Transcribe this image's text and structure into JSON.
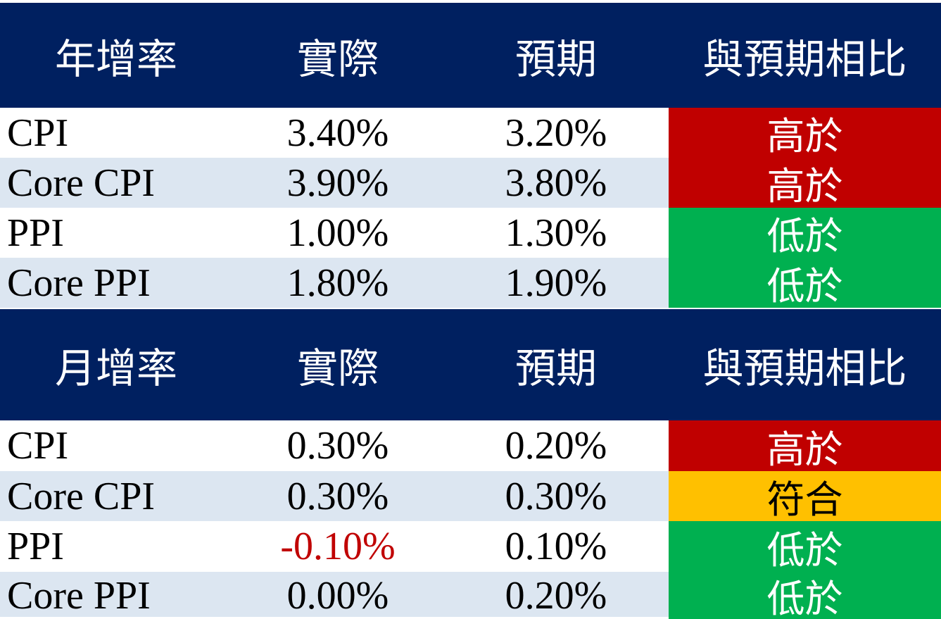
{
  "colors": {
    "header_bg": "#002060",
    "header_text": "#FFFFFF",
    "row_alt_bg": "#DCE6F1",
    "higher_bg": "#C00000",
    "lower_bg": "#00B050",
    "match_bg": "#FFC000",
    "negative_value_text": "#C00000"
  },
  "chart_data": [
    {
      "type": "table",
      "title": "年增率",
      "headers": [
        "年增率",
        "實際",
        "預期",
        "與預期相比"
      ],
      "rows": [
        {
          "label": "CPI",
          "actual": "3.40%",
          "expected": "3.20%",
          "status": "高於",
          "status_class": "status-red",
          "actual_class": ""
        },
        {
          "label": "Core CPI",
          "actual": "3.90%",
          "expected": "3.80%",
          "status": "高於",
          "status_class": "status-red",
          "actual_class": ""
        },
        {
          "label": "PPI",
          "actual": "1.00%",
          "expected": "1.30%",
          "status": "低於",
          "status_class": "status-green",
          "actual_class": ""
        },
        {
          "label": "Core PPI",
          "actual": "1.80%",
          "expected": "1.90%",
          "status": "低於",
          "status_class": "status-green",
          "actual_class": ""
        }
      ]
    },
    {
      "type": "table",
      "title": "月增率",
      "headers": [
        "月增率",
        "實際",
        "預期",
        "與預期相比"
      ],
      "rows": [
        {
          "label": "CPI",
          "actual": "0.30%",
          "expected": "0.20%",
          "status": "高於",
          "status_class": "status-red",
          "actual_class": ""
        },
        {
          "label": "Core CPI",
          "actual": "0.30%",
          "expected": "0.30%",
          "status": "符合",
          "status_class": "status-amber",
          "actual_class": ""
        },
        {
          "label": "PPI",
          "actual": "-0.10%",
          "expected": "0.10%",
          "status": "低於",
          "status_class": "status-green",
          "actual_class": "neg"
        },
        {
          "label": "Core PPI",
          "actual": "0.00%",
          "expected": "0.20%",
          "status": "低於",
          "status_class": "status-green",
          "actual_class": ""
        }
      ]
    }
  ]
}
